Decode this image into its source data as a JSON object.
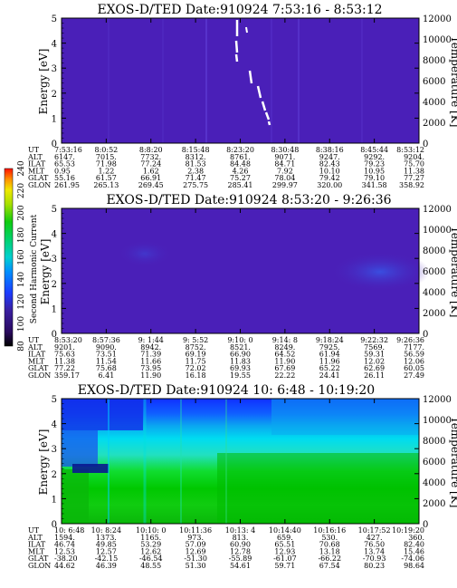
{
  "chart_data": [
    {
      "type": "heatmap",
      "title": "EXOS-D/TED   Date:910924  7:53:16 - 8:53:12",
      "ylabel": "Energy [eV]",
      "y2label": "Temperature [K]",
      "ylim": [
        0,
        5
      ],
      "y_ticks": [
        "0",
        "1",
        "2",
        "3",
        "4",
        "5"
      ],
      "y2lim": [
        0,
        12000
      ],
      "y2_ticks": [
        "0",
        "2000",
        "4000",
        "6000",
        "8000",
        "10000",
        "12000"
      ],
      "background": "#4a1fb8",
      "row_labels": [
        "UT",
        "ALT",
        "ILAT",
        "MLT",
        "GLAT",
        "GLON"
      ],
      "columns": [
        [
          "7:53:16",
          "6147.",
          "65.53",
          "0.95",
          "55.16",
          "261.95"
        ],
        [
          "8:0:52",
          "7015.",
          "71.98",
          "1.22",
          "61.57",
          "265.13"
        ],
        [
          "8:8:20",
          "7732.",
          "77.24",
          "1.62",
          "66.91",
          "269.45"
        ],
        [
          "8:15:48",
          "8312.",
          "81.53",
          "2.38",
          "71.47",
          "275.75"
        ],
        [
          "8:23:20",
          "8761.",
          "84.48",
          "4.26",
          "75.27",
          "285.41"
        ],
        [
          "8:30:48",
          "9071.",
          "84.71",
          "7.92",
          "78.04",
          "299.97"
        ],
        [
          "8:38:16",
          "9247.",
          "82.43",
          "10.10",
          "79.42",
          "320.00"
        ],
        [
          "8:45:44",
          "9292.",
          "79.23",
          "10.95",
          "79.10",
          "341.58"
        ],
        [
          "8:53:12",
          "9204.",
          "75.70",
          "11.38",
          "77.27",
          "358.92"
        ]
      ]
    },
    {
      "type": "heatmap",
      "title": "EXOS-D/TED   Date:910924  8:53:20 - 9:26:36",
      "ylabel": "Energy [eV]",
      "y2label": "Temperature [K]",
      "ylim": [
        0,
        5
      ],
      "y_ticks": [
        "0",
        "1",
        "2",
        "3",
        "4",
        "5"
      ],
      "y2lim": [
        0,
        12000
      ],
      "y2_ticks": [
        "0",
        "2000",
        "4000",
        "6000",
        "8000",
        "10000",
        "12000"
      ],
      "background": "#4a1fb8",
      "row_labels": [
        "UT",
        "ALT",
        "ILAT",
        "MLT",
        "GLAT",
        "GLON"
      ],
      "columns": [
        [
          "8:53:20",
          "9201.",
          "75.63",
          "11.38",
          "77.22",
          "359.17"
        ],
        [
          "8:57:36",
          "9090.",
          "73.51",
          "11.54",
          "75.68",
          "6.41"
        ],
        [
          "9: 1:44",
          "8942.",
          "71.39",
          "11.66",
          "73.95",
          "11.90"
        ],
        [
          "9: 5:52",
          "8752.",
          "69.19",
          "11.75",
          "72.02",
          "16.18"
        ],
        [
          "9:10: 0",
          "8521.",
          "66.90",
          "11.83",
          "69.93",
          "19.55"
        ],
        [
          "9:14: 8",
          "8249.",
          "64.52",
          "11.90",
          "67.69",
          "22.22"
        ],
        [
          "9:18:24",
          "7925.",
          "61.94",
          "11.96",
          "65.22",
          "24.41"
        ],
        [
          "9:22:32",
          "7569.",
          "59.31",
          "12.02",
          "62.69",
          "26.11"
        ],
        [
          "9:26:36",
          "7177.",
          "56.59",
          "12.06",
          "60.05",
          "27.49"
        ]
      ]
    },
    {
      "type": "heatmap",
      "title": "EXOS-D/TED   Date:910924  10: 6:48 - 10:19:20",
      "ylabel": "Energy [eV]",
      "y2label": "Temperature [K]",
      "ylim": [
        0,
        5
      ],
      "y_ticks": [
        "0",
        "1",
        "2",
        "3",
        "4",
        "5"
      ],
      "y2lim": [
        0,
        12000
      ],
      "y2_ticks": [
        "0",
        "2000",
        "4000",
        "6000",
        "8000",
        "10000",
        "12000"
      ],
      "row_labels": [
        "UT",
        "ALT",
        "ILAT",
        "MLT",
        "GLAT",
        "GLON"
      ],
      "columns": [
        [
          "10: 6:48",
          "1594.",
          "46.74",
          "12.53",
          "-38.20",
          "44.62"
        ],
        [
          "10: 8:24",
          "1373.",
          "49.85",
          "12.57",
          "-42.15",
          "46.39"
        ],
        [
          "10:10: 0",
          "1165.",
          "53.29",
          "12.62",
          "-46.54",
          "48.55"
        ],
        [
          "10:11:36",
          "973.",
          "57.09",
          "12.69",
          "-51.30",
          "51.30"
        ],
        [
          "10:13: 4",
          "813.",
          "60.90",
          "12.78",
          "-55.89",
          "54.61"
        ],
        [
          "10:14:40",
          "659.",
          "65.51",
          "12.93",
          "-61.07",
          "59.71"
        ],
        [
          "10:16:16",
          "530.",
          "70.68",
          "13.18",
          "-66.22",
          "67.54"
        ],
        [
          "10:17:52",
          "427.",
          "76.50",
          "13.74",
          "-70.93",
          "80.23"
        ],
        [
          "10:19:20",
          "360.",
          "82.40",
          "15.46",
          "-74.06",
          "98.64"
        ]
      ]
    }
  ],
  "colorbar": {
    "label": "Second Harmonic Current",
    "ticks": [
      "80",
      "100",
      "120",
      "140",
      "160",
      "180",
      "200",
      "220",
      "240"
    ],
    "colors": [
      "#000000",
      "#2a0a5e",
      "#3a1fa0",
      "#1c3cff",
      "#0078ff",
      "#00c8e6",
      "#00d27a",
      "#0acb10",
      "#7cdc00",
      "#e8e800",
      "#ffb000",
      "#ff6000",
      "#ff1a00"
    ]
  }
}
